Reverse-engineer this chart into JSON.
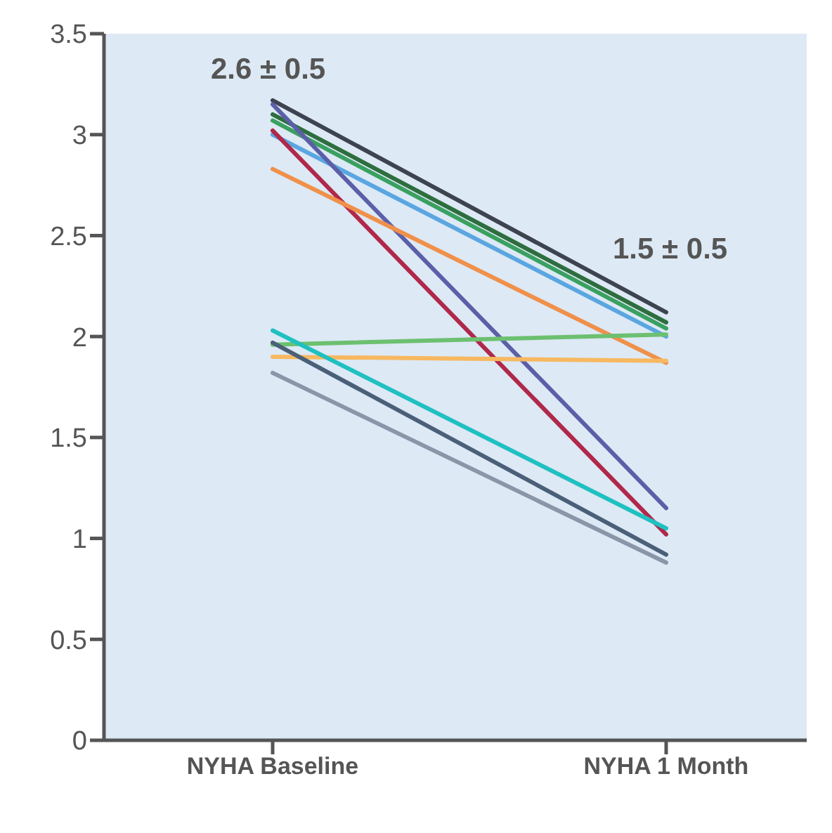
{
  "chart_data": {
    "type": "line",
    "categories": [
      "NYHA Baseline",
      "NYHA 1 Month"
    ],
    "series": [
      {
        "color": "#3d4450",
        "values": [
          3.17,
          2.12
        ]
      },
      {
        "color": "#2e6e3e",
        "values": [
          3.1,
          2.07
        ]
      },
      {
        "color": "#3aa060",
        "values": [
          3.07,
          2.04
        ]
      },
      {
        "color": "#5aa6e0",
        "values": [
          3.0,
          2.0
        ]
      },
      {
        "color": "#5b5fa8",
        "values": [
          3.15,
          1.15
        ]
      },
      {
        "color": "#b0284a",
        "values": [
          3.02,
          1.02
        ]
      },
      {
        "color": "#f0904a",
        "values": [
          2.83,
          1.87
        ]
      },
      {
        "color": "#6cc070",
        "values": [
          1.96,
          2.01
        ]
      },
      {
        "color": "#f7b860",
        "values": [
          1.9,
          1.88
        ]
      },
      {
        "color": "#20c0c0",
        "values": [
          2.03,
          1.05
        ]
      },
      {
        "color": "#4a6078",
        "values": [
          1.97,
          0.92
        ]
      },
      {
        "color": "#8a96a8",
        "values": [
          1.82,
          0.88
        ]
      }
    ],
    "ylim": [
      0,
      3.5
    ],
    "yticks": [
      0,
      0.5,
      1,
      1.5,
      2,
      2.5,
      3,
      3.5
    ],
    "grid": false,
    "marker": "none",
    "line_style": "solid",
    "annotations": [
      "2.6 ± 0.5",
      "1.5 ± 0.5"
    ]
  }
}
